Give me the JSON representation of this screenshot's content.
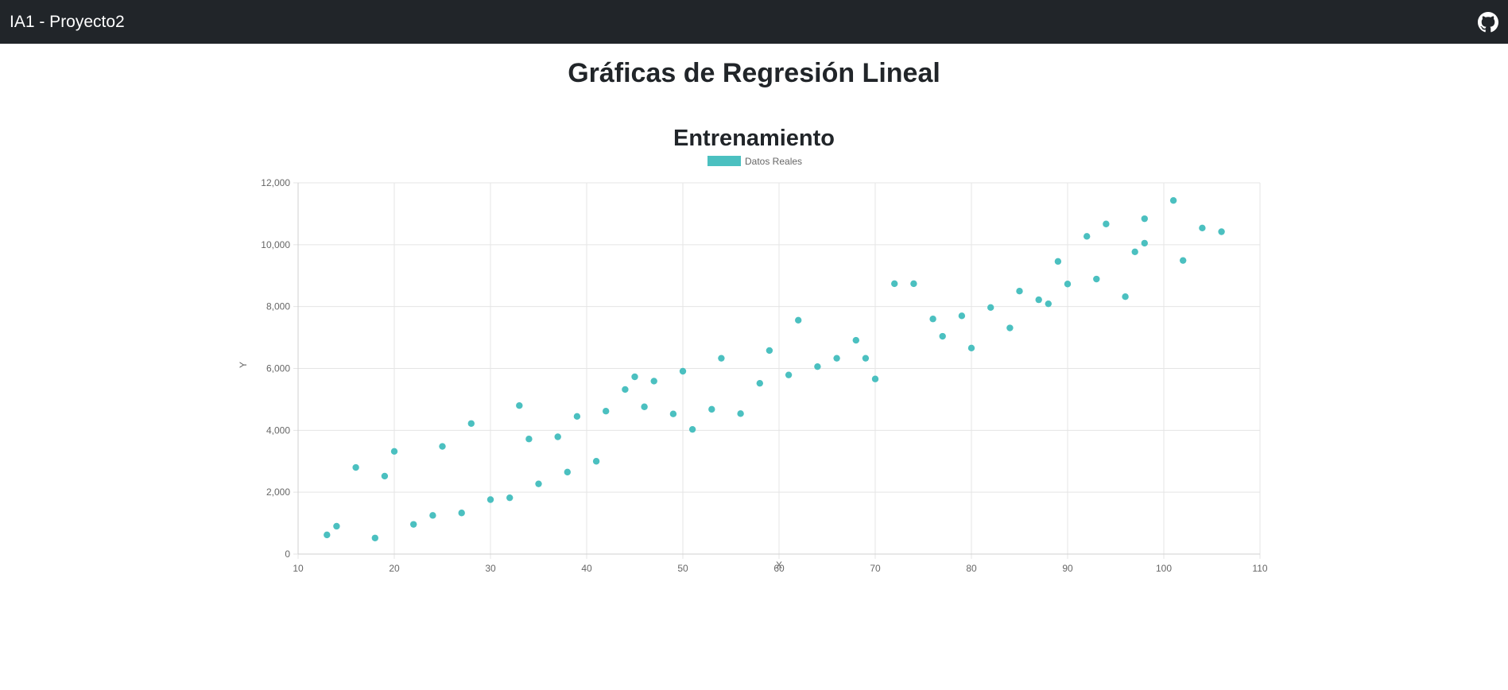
{
  "navbar": {
    "brand": "IA1 - Proyecto2",
    "icon": "github-icon"
  },
  "page": {
    "title": "Gráficas de Regresión Lineal"
  },
  "colors": {
    "accent": "#4BC0C0",
    "navbar": "#212529",
    "grid": "#E5E5E5"
  },
  "chart_data": {
    "type": "scatter",
    "title": "Entrenamiento",
    "xlabel": "X",
    "ylabel": "Y",
    "xlim": [
      10,
      110
    ],
    "ylim": [
      0,
      12000
    ],
    "x_ticks": [
      "10",
      "20",
      "30",
      "40",
      "50",
      "60",
      "70",
      "80",
      "90",
      "100",
      "110"
    ],
    "y_ticks": [
      "0",
      "2,000",
      "4,000",
      "6,000",
      "8,000",
      "10,000",
      "12,000"
    ],
    "grid": true,
    "legend_position": "top-center",
    "series": [
      {
        "name": "Datos Reales",
        "color": "#4BC0C0",
        "points": [
          [
            13,
            620
          ],
          [
            14,
            900
          ],
          [
            16,
            2800
          ],
          [
            18,
            520
          ],
          [
            19,
            2520
          ],
          [
            20,
            3320
          ],
          [
            22,
            960
          ],
          [
            24,
            1250
          ],
          [
            25,
            3480
          ],
          [
            27,
            1330
          ],
          [
            28,
            4220
          ],
          [
            30,
            1760
          ],
          [
            32,
            1820
          ],
          [
            33,
            4800
          ],
          [
            34,
            3720
          ],
          [
            35,
            2270
          ],
          [
            37,
            3790
          ],
          [
            38,
            2650
          ],
          [
            39,
            4450
          ],
          [
            41,
            3000
          ],
          [
            42,
            4620
          ],
          [
            44,
            5320
          ],
          [
            45,
            5730
          ],
          [
            46,
            4760
          ],
          [
            47,
            5590
          ],
          [
            49,
            4530
          ],
          [
            50,
            5910
          ],
          [
            51,
            4030
          ],
          [
            53,
            4680
          ],
          [
            54,
            6330
          ],
          [
            56,
            4540
          ],
          [
            58,
            5520
          ],
          [
            59,
            6580
          ],
          [
            61,
            5790
          ],
          [
            62,
            7560
          ],
          [
            64,
            6060
          ],
          [
            66,
            6330
          ],
          [
            68,
            6910
          ],
          [
            69,
            6330
          ],
          [
            70,
            5660
          ],
          [
            72,
            8740
          ],
          [
            74,
            8740
          ],
          [
            76,
            7600
          ],
          [
            77,
            7040
          ],
          [
            79,
            7700
          ],
          [
            80,
            6660
          ],
          [
            82,
            7970
          ],
          [
            84,
            7310
          ],
          [
            85,
            8500
          ],
          [
            87,
            8220
          ],
          [
            88,
            8090
          ],
          [
            89,
            9460
          ],
          [
            90,
            8730
          ],
          [
            92,
            10270
          ],
          [
            93,
            8890
          ],
          [
            94,
            10670
          ],
          [
            96,
            8320
          ],
          [
            97,
            9770
          ],
          [
            98,
            10050
          ],
          [
            98,
            10840
          ],
          [
            101,
            11430
          ],
          [
            102,
            9490
          ],
          [
            104,
            10540
          ],
          [
            106,
            10420
          ]
        ]
      }
    ]
  }
}
